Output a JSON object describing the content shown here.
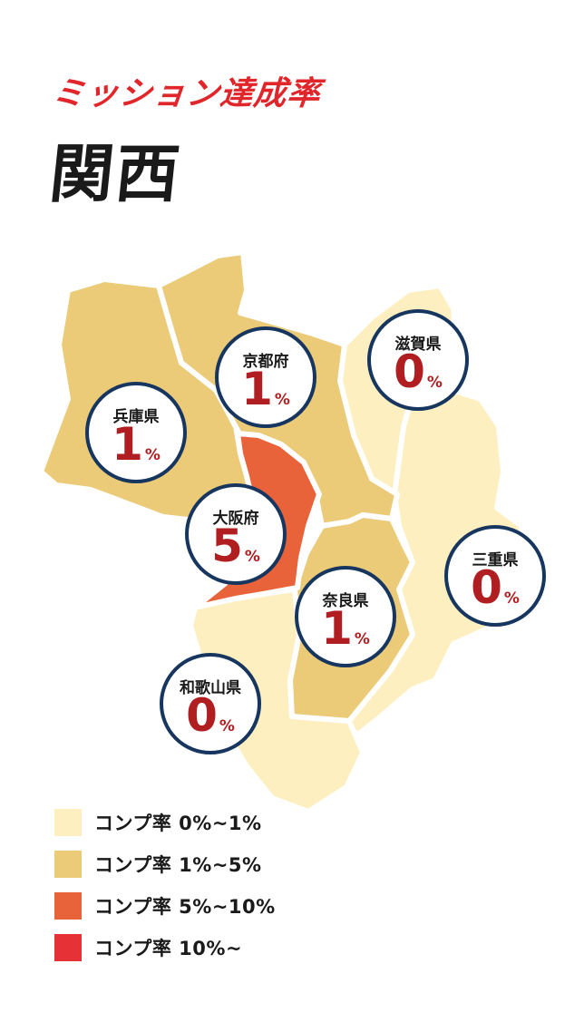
{
  "header": {
    "subtitle": "ミッション達成率",
    "title": "関西"
  },
  "colors": {
    "tier1": "#fdefbf",
    "tier2": "#ebca78",
    "tier3": "#e8623a",
    "tier4": "#e63237",
    "badge_border": "#17365f",
    "badge_value": "#b01e22"
  },
  "prefectures": [
    {
      "key": "hyogo",
      "name": "兵庫県",
      "value": "1",
      "unit": "%"
    },
    {
      "key": "kyoto",
      "name": "京都府",
      "value": "1",
      "unit": "%"
    },
    {
      "key": "shiga",
      "name": "滋賀県",
      "value": "0",
      "unit": "%"
    },
    {
      "key": "osaka",
      "name": "大阪府",
      "value": "5",
      "unit": "%"
    },
    {
      "key": "mie",
      "name": "三重県",
      "value": "0",
      "unit": "%"
    },
    {
      "key": "nara",
      "name": "奈良県",
      "value": "1",
      "unit": "%"
    },
    {
      "key": "wakayama",
      "name": "和歌山県",
      "value": "0",
      "unit": "%"
    }
  ],
  "legend": [
    {
      "label": "コンプ率 0%~1%",
      "color": "#fdefbf"
    },
    {
      "label": "コンプ率 1%~5%",
      "color": "#ebca78"
    },
    {
      "label": "コンプ率 5%~10%",
      "color": "#e8623a"
    },
    {
      "label": "コンプ率 10%~",
      "color": "#e63237"
    }
  ]
}
